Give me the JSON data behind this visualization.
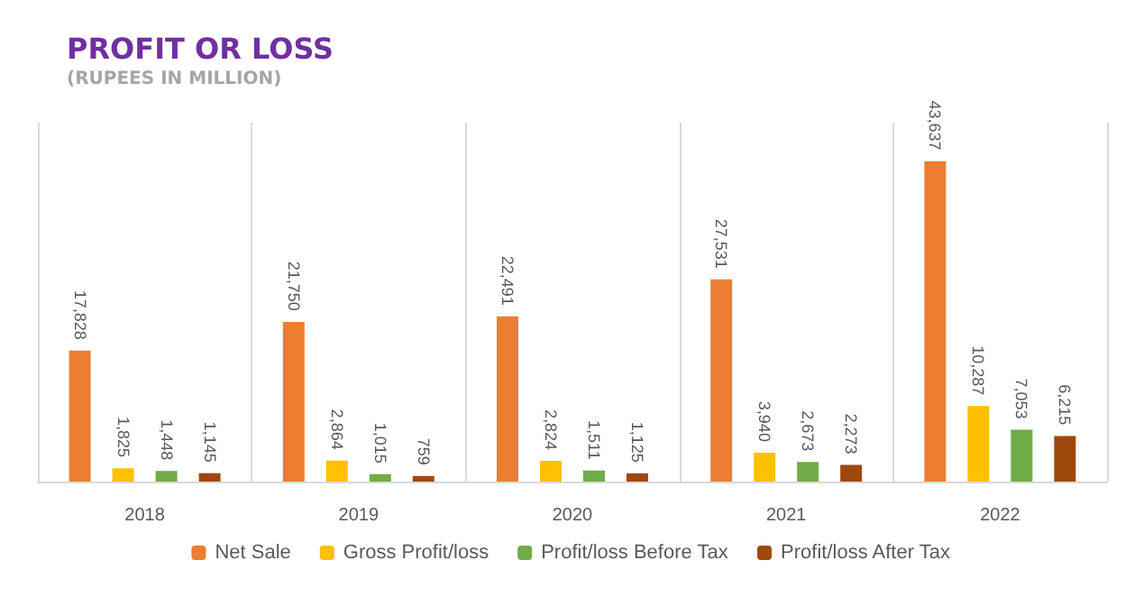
{
  "chart_data": {
    "type": "bar",
    "title": "PROFIT OR LOSS",
    "subtitle": "(RUPEES IN MILLION)",
    "categories": [
      "2018",
      "2019",
      "2020",
      "2021",
      "2022"
    ],
    "series": [
      {
        "name": "Net Sale",
        "color": "#ed7d31",
        "values": [
          17828,
          21750,
          22491,
          27531,
          43637
        ],
        "value_labels": [
          "17,828",
          "21,750",
          "22,491",
          "27,531",
          "43,637"
        ]
      },
      {
        "name": "Gross Profit/loss",
        "color": "#ffc000",
        "values": [
          1825,
          2864,
          2824,
          3940,
          10287
        ],
        "value_labels": [
          "1,825",
          "2,864",
          "2,824",
          "3,940",
          "10,287"
        ]
      },
      {
        "name": "Profit/loss Before Tax",
        "color": "#70ad47",
        "values": [
          1448,
          1015,
          1511,
          2673,
          7053
        ],
        "value_labels": [
          "1,448",
          "1,015",
          "1,511",
          "2,673",
          "7,053"
        ]
      },
      {
        "name": "Profit/loss After Tax",
        "color": "#9e480e",
        "values": [
          1145,
          759,
          1125,
          2273,
          6215
        ],
        "value_labels": [
          "1,145",
          "759",
          "1,125",
          "2,273",
          "6,215"
        ]
      }
    ],
    "grid": "x",
    "legend": "bottom"
  }
}
